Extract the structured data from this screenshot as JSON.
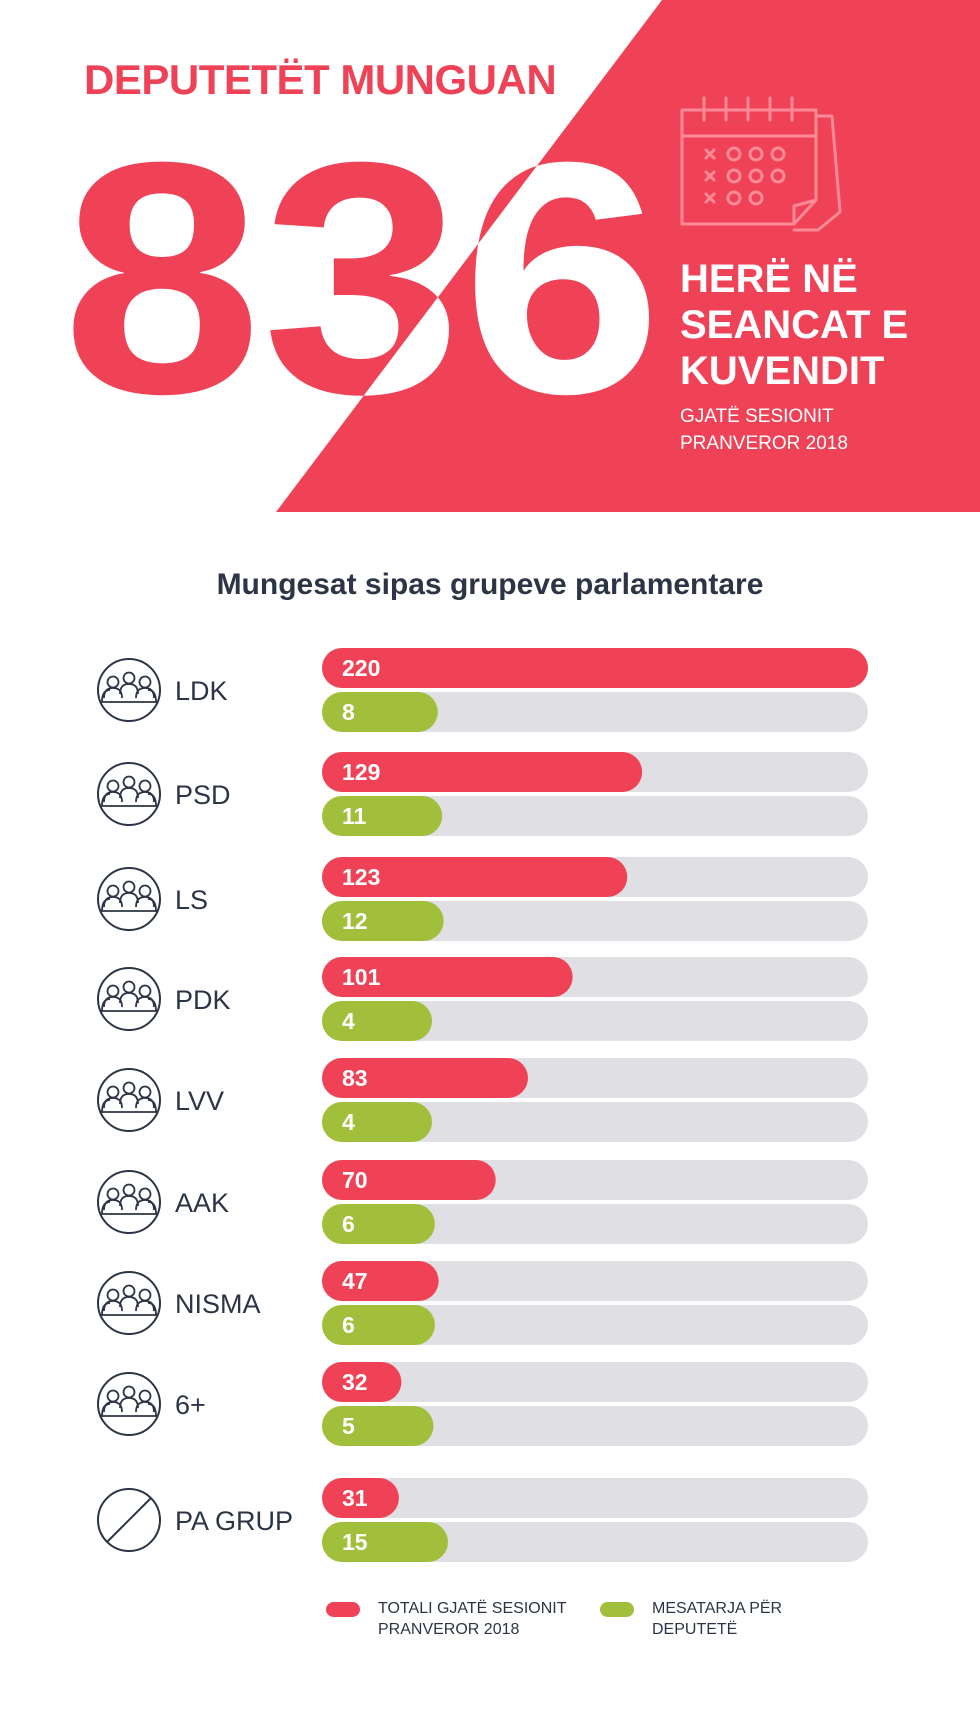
{
  "hero": {
    "title": "DEPUTETËT MUNGUAN",
    "big_number": "836",
    "subtitle_lines": [
      "HERË NË",
      "SEANCAT E",
      "KUVENDIT"
    ],
    "period_lines": [
      "GJATË SESIONIT",
      "PRANVEROR 2018"
    ],
    "icon": "calendar-icon"
  },
  "colors": {
    "accent": "#ef4257",
    "green": "#a1bf3a",
    "track": "#dfdfe4",
    "text": "#2c3545",
    "white": "#ffffff"
  },
  "chart_data": {
    "type": "bar",
    "orientation": "horizontal",
    "title": "Mungesat sipas grupeve parlamentare",
    "categories": [
      "LDK",
      "PSD",
      "LS",
      "PDK",
      "LVV",
      "AAK",
      "NISMA",
      "6+",
      "PA GRUP"
    ],
    "category_icons": [
      "group-icon",
      "group-icon",
      "group-icon",
      "group-icon",
      "group-icon",
      "group-icon",
      "group-icon",
      "group-icon",
      "no-group-icon"
    ],
    "series": [
      {
        "name": "TOTALI GJATË SESIONIT PRANVEROR 2018",
        "color": "#ef4257",
        "values": [
          220,
          129,
          123,
          101,
          83,
          70,
          47,
          32,
          31
        ],
        "xlim": [
          0,
          220
        ]
      },
      {
        "name": "MESATARJA PËR DEPUTETË",
        "color": "#a1bf3a",
        "values": [
          8,
          11,
          12,
          4,
          4,
          6,
          6,
          5,
          15
        ]
      }
    ],
    "legend_position": "bottom",
    "grid": false
  },
  "legend": {
    "total_lines": [
      "TOTALI GJATË SESIONIT",
      "PRANVEROR 2018"
    ],
    "average_lines": [
      "MESATARJA PËR",
      "DEPUTETË"
    ]
  }
}
